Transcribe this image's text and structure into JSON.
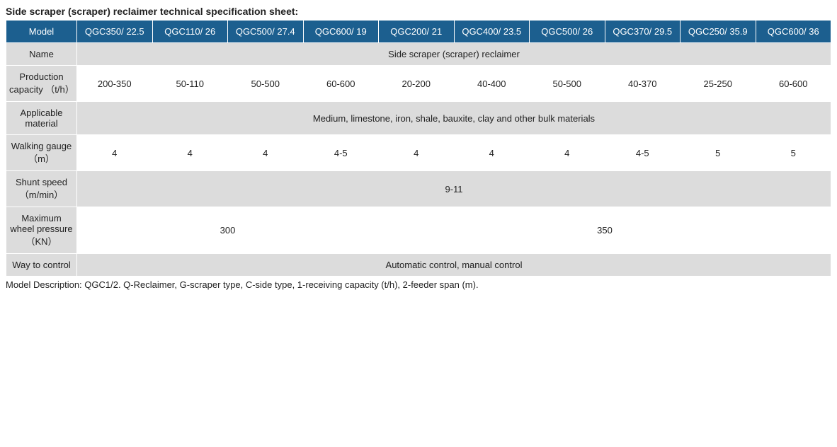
{
  "title": "Side scraper (scraper) reclaimer technical specification sheet:",
  "colors": {
    "header_bg": "#1c5f8f",
    "header_text": "#ffffff",
    "row_gray": "#dcdcdc",
    "row_white": "#ffffff",
    "border": "#ffffff",
    "text": "#222222"
  },
  "header": {
    "label": "Model",
    "models": [
      "QGC350/ 22.5",
      "QGC110/ 26",
      "QGC500/ 27.4",
      "QGC600/ 19",
      "QGC200/ 21",
      "QGC400/ 23.5",
      "QGC500/ 26",
      "QGC370/ 29.5",
      "QGC250/ 35.9",
      "QGC600/ 36"
    ]
  },
  "rows": [
    {
      "label": "Name",
      "type": "span",
      "value": "Side scraper (scraper) reclaimer",
      "style": "gray"
    },
    {
      "label": "Production capacity （t/h）",
      "type": "cells",
      "values": [
        "200-350",
        "50-110",
        "50-500",
        "60-600",
        "20-200",
        "40-400",
        "50-500",
        "40-370",
        "25-250",
        "60-600"
      ],
      "style": "white"
    },
    {
      "label": "Applicable material",
      "type": "span",
      "value": "Medium, limestone, iron, shale, bauxite, clay and other bulk materials",
      "style": "gray"
    },
    {
      "label": "Walking gauge （m）",
      "type": "cells",
      "values": [
        "4",
        "4",
        "4",
        "4-5",
        "4",
        "4",
        "4",
        "4-5",
        "5",
        "5"
      ],
      "style": "white"
    },
    {
      "label": "Shunt speed （m/min）",
      "type": "span",
      "value": "9-11",
      "style": "gray"
    },
    {
      "label": "Maximum wheel pressure （KN）",
      "type": "split",
      "left": "300",
      "right": "350",
      "left_span": 4,
      "right_span": 6,
      "style": "white"
    },
    {
      "label": "Way to control",
      "type": "span",
      "value": "Automatic control, manual control",
      "style": "gray"
    }
  ],
  "description": "Model Description: QGC1/2. Q-Reclaimer, G-scraper type, C-side type, 1-receiving capacity (t/h), 2-feeder span (m)."
}
